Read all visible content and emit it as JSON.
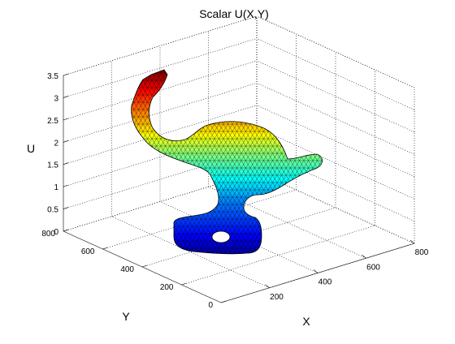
{
  "chart_data": {
    "type": "surface",
    "title": "Scalar U(X,Y)",
    "xlabel": "X",
    "ylabel": "Y",
    "zlabel": "U",
    "x_ticks": [
      "200",
      "400",
      "600",
      "800"
    ],
    "y_ticks": [
      "0",
      "200",
      "400",
      "600",
      "800"
    ],
    "z_ticks": [
      "0",
      "0.5",
      "1",
      "1.5",
      "2",
      "2.5",
      "3",
      "3.5"
    ],
    "xlim": [
      0,
      800
    ],
    "ylim": [
      0,
      800
    ],
    "zlim": [
      0,
      3.5
    ],
    "grid": true,
    "mesh": "triangular",
    "colormap": "jet",
    "colors": {
      "low": "#00008f",
      "mid": "#00ffff",
      "high": "#800000"
    }
  }
}
